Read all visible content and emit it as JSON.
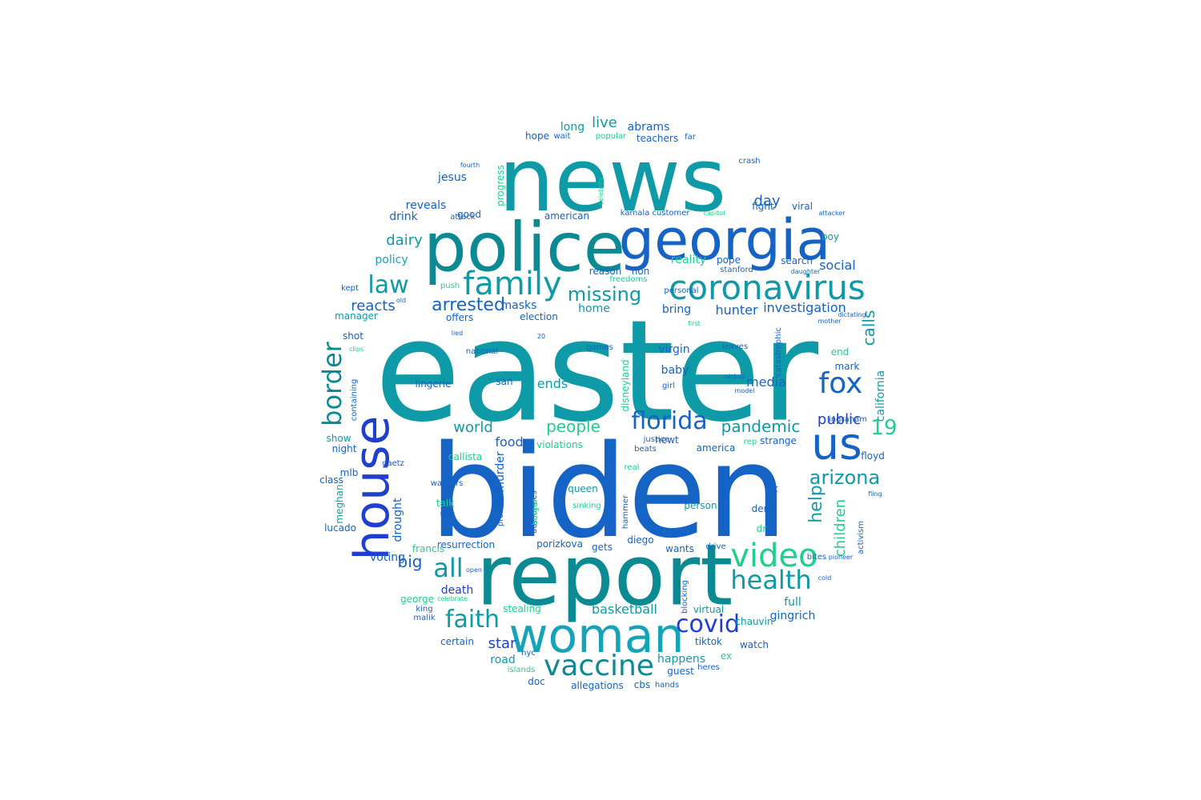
{
  "palette": {
    "teal": "#0e9aa7",
    "teal_dark": "#0b8a93",
    "blue": "#1563c4",
    "blue_dark": "#1f3fcf",
    "cyan": "#14a3b8",
    "green": "#1fcf8f",
    "green_light": "#3fe0a0",
    "indigo": "#3b4fe0"
  },
  "words": [
    {
      "text": "easter",
      "color": "teal"
    },
    {
      "text": "biden",
      "color": "blue"
    },
    {
      "text": "news",
      "color": "teal"
    },
    {
      "text": "report",
      "color": "teal_dark"
    },
    {
      "text": "police",
      "color": "teal_dark"
    },
    {
      "text": "georgia",
      "color": "blue"
    },
    {
      "text": "woman",
      "color": "cyan"
    },
    {
      "text": "house",
      "color": "blue_dark"
    },
    {
      "text": "us",
      "color": "blue"
    },
    {
      "text": "coronavirus",
      "color": "teal"
    },
    {
      "text": "family",
      "color": "teal"
    },
    {
      "text": "video",
      "color": "green"
    },
    {
      "text": "vaccine",
      "color": "teal_dark"
    },
    {
      "text": "health",
      "color": "teal"
    },
    {
      "text": "florida",
      "color": "blue"
    },
    {
      "text": "fox",
      "color": "blue"
    },
    {
      "text": "covid",
      "color": "blue_dark"
    },
    {
      "text": "law",
      "color": "teal"
    },
    {
      "text": "faith",
      "color": "teal"
    },
    {
      "text": "all",
      "color": "teal"
    },
    {
      "text": "border",
      "color": "teal_dark"
    },
    {
      "text": "19",
      "color": "green"
    },
    {
      "text": "missing",
      "color": "teal"
    },
    {
      "text": "arrested",
      "color": "blue"
    },
    {
      "text": "arizona",
      "color": "teal"
    },
    {
      "text": "help",
      "color": "teal"
    },
    {
      "text": "calls",
      "color": "teal"
    },
    {
      "text": "pandemic",
      "color": "teal"
    },
    {
      "text": "people",
      "color": "green"
    },
    {
      "text": "big",
      "color": "blue"
    },
    {
      "text": "children",
      "color": "green"
    },
    {
      "text": "dairy",
      "color": "teal"
    },
    {
      "text": "reacts",
      "color": "blue"
    },
    {
      "text": "public",
      "color": "blue_dark"
    },
    {
      "text": "star",
      "color": "blue_dark"
    },
    {
      "text": "world",
      "color": "teal"
    },
    {
      "text": "day",
      "color": "blue"
    },
    {
      "text": "live",
      "color": "teal"
    },
    {
      "text": "ends",
      "color": "teal"
    },
    {
      "text": "media",
      "color": "blue"
    },
    {
      "text": "hunter",
      "color": "blue"
    },
    {
      "text": "investigation",
      "color": "blue"
    },
    {
      "text": "masks",
      "color": "blue"
    },
    {
      "text": "basketball",
      "color": "teal"
    },
    {
      "text": "social",
      "color": "blue"
    },
    {
      "text": "drought",
      "color": "blue"
    },
    {
      "text": "food",
      "color": "blue"
    },
    {
      "text": "voting",
      "color": "blue"
    },
    {
      "text": "baby",
      "color": "blue"
    },
    {
      "text": "reality",
      "color": "green"
    },
    {
      "text": "california",
      "color": "teal"
    },
    {
      "text": "jesus",
      "color": "blue"
    },
    {
      "text": "reveals",
      "color": "blue"
    },
    {
      "text": "drink",
      "color": "blue"
    },
    {
      "text": "policy",
      "color": "cyan"
    },
    {
      "text": "long",
      "color": "teal"
    },
    {
      "text": "abrams",
      "color": "blue"
    },
    {
      "text": "death",
      "color": "blue_dark"
    },
    {
      "text": "happens",
      "color": "teal"
    },
    {
      "text": "full",
      "color": "teal"
    },
    {
      "text": "murder",
      "color": "blue"
    },
    {
      "text": "gingrich",
      "color": "blue"
    },
    {
      "text": "home",
      "color": "teal"
    },
    {
      "text": "bring",
      "color": "blue"
    },
    {
      "text": "virgin",
      "color": "blue"
    },
    {
      "text": "election",
      "color": "blue"
    },
    {
      "text": "show",
      "color": "teal"
    },
    {
      "text": "night",
      "color": "blue"
    },
    {
      "text": "road",
      "color": "teal"
    },
    {
      "text": "lingerie",
      "color": "blue"
    },
    {
      "text": "pope",
      "color": "blue"
    },
    {
      "text": "queen",
      "color": "teal"
    },
    {
      "text": "talk",
      "color": "green"
    },
    {
      "text": "resurrection",
      "color": "blue"
    },
    {
      "text": "porizkova",
      "color": "blue"
    },
    {
      "text": "francis",
      "color": "green"
    },
    {
      "text": "chauvin",
      "color": "teal"
    },
    {
      "text": "tiktok",
      "color": "blue"
    },
    {
      "text": "guest",
      "color": "blue"
    },
    {
      "text": "doc",
      "color": "blue"
    },
    {
      "text": "allegations",
      "color": "blue"
    },
    {
      "text": "stealing",
      "color": "green"
    },
    {
      "text": "george",
      "color": "green"
    },
    {
      "text": "virtual",
      "color": "teal"
    },
    {
      "text": "person",
      "color": "teal"
    },
    {
      "text": "america",
      "color": "blue"
    },
    {
      "text": "strange",
      "color": "blue"
    },
    {
      "text": "newt",
      "color": "blue"
    },
    {
      "text": "callista",
      "color": "green"
    },
    {
      "text": "violations",
      "color": "green"
    },
    {
      "text": "shot",
      "color": "blue"
    },
    {
      "text": "manager",
      "color": "teal"
    },
    {
      "text": "offers",
      "color": "blue"
    },
    {
      "text": "good",
      "color": "blue"
    },
    {
      "text": "american",
      "color": "blue"
    },
    {
      "text": "progress",
      "color": "green"
    },
    {
      "text": "fight",
      "color": "blue"
    },
    {
      "text": "viral",
      "color": "blue"
    },
    {
      "text": "boy",
      "color": "teal"
    },
    {
      "text": "search",
      "color": "blue"
    },
    {
      "text": "non",
      "color": "blue"
    },
    {
      "text": "reason",
      "color": "blue"
    },
    {
      "text": "hope",
      "color": "blue"
    },
    {
      "text": "teachers",
      "color": "blue"
    },
    {
      "text": "class",
      "color": "blue"
    },
    {
      "text": "meghan",
      "color": "teal"
    },
    {
      "text": "mlb",
      "color": "blue"
    },
    {
      "text": "lucado",
      "color": "blue"
    },
    {
      "text": "containing",
      "color": "blue"
    },
    {
      "text": "disneyland",
      "color": "green"
    },
    {
      "text": "san",
      "color": "blue"
    },
    {
      "text": "activism",
      "color": "blue"
    },
    {
      "text": "floyd",
      "color": "blue"
    },
    {
      "text": "mark",
      "color": "blue"
    },
    {
      "text": "end",
      "color": "green"
    },
    {
      "text": "let",
      "color": "blue"
    },
    {
      "text": "dem",
      "color": "blue"
    },
    {
      "text": "dr",
      "color": "green"
    },
    {
      "text": "wants",
      "color": "blue"
    },
    {
      "text": "gets",
      "color": "blue"
    },
    {
      "text": "diego",
      "color": "blue"
    },
    {
      "text": "certain",
      "color": "blue"
    },
    {
      "text": "watch",
      "color": "blue"
    },
    {
      "text": "ex",
      "color": "green"
    },
    {
      "text": "cbs",
      "color": "blue"
    },
    {
      "text": "matt",
      "color": "blue"
    },
    {
      "text": "blocking",
      "color": "blue"
    },
    {
      "text": "ingraham",
      "color": "blue"
    },
    {
      "text": "national",
      "color": "blue"
    },
    {
      "text": "kamala",
      "color": "blue"
    },
    {
      "text": "customer",
      "color": "blue"
    },
    {
      "text": "stanford",
      "color": "blue"
    },
    {
      "text": "kept",
      "color": "blue"
    },
    {
      "text": "push",
      "color": "green"
    },
    {
      "text": "crash",
      "color": "blue"
    },
    {
      "text": "leaves",
      "color": "blue"
    },
    {
      "text": "attack",
      "color": "blue"
    },
    {
      "text": "girl",
      "color": "blue"
    },
    {
      "text": "games",
      "color": "blue"
    },
    {
      "text": "nyc",
      "color": "blue"
    },
    {
      "text": "islands",
      "color": "green"
    },
    {
      "text": "promise",
      "color": "blue"
    },
    {
      "text": "authorities",
      "color": "blue"
    },
    {
      "text": "hammer",
      "color": "blue"
    },
    {
      "text": "sinking",
      "color": "green"
    },
    {
      "text": "beats",
      "color": "blue"
    },
    {
      "text": "justice",
      "color": "blue"
    },
    {
      "text": "warriors",
      "color": "blue"
    },
    {
      "text": "gaetz",
      "color": "blue"
    },
    {
      "text": "rep",
      "color": "green"
    },
    {
      "text": "drive",
      "color": "blue"
    },
    {
      "text": "bites",
      "color": "blue"
    },
    {
      "text": "hands",
      "color": "blue"
    },
    {
      "text": "heres",
      "color": "blue"
    },
    {
      "text": "king",
      "color": "blue"
    },
    {
      "text": "malik",
      "color": "blue"
    },
    {
      "text": "burger",
      "color": "green"
    },
    {
      "text": "nah",
      "color": "blue"
    },
    {
      "text": "popular",
      "color": "green"
    },
    {
      "text": "wait",
      "color": "blue"
    },
    {
      "text": "far",
      "color": "blue"
    },
    {
      "text": "personal",
      "color": "blue"
    },
    {
      "text": "freedoms",
      "color": "green"
    },
    {
      "text": "catastrophic",
      "color": "blue"
    },
    {
      "text": "real",
      "color": "green"
    },
    {
      "text": "open",
      "color": "blue"
    },
    {
      "text": "20",
      "color": "blue"
    },
    {
      "text": "clips",
      "color": "green"
    },
    {
      "text": "first",
      "color": "green"
    },
    {
      "text": "mother",
      "color": "blue"
    },
    {
      "text": "dictating",
      "color": "blue"
    },
    {
      "text": "daughter",
      "color": "blue"
    },
    {
      "text": "celebrate",
      "color": "green"
    },
    {
      "text": "fourth",
      "color": "blue"
    },
    {
      "text": "old",
      "color": "blue"
    },
    {
      "text": "cold",
      "color": "blue"
    },
    {
      "text": "pioneer",
      "color": "blue"
    },
    {
      "text": "capitol",
      "color": "green"
    },
    {
      "text": "attacker",
      "color": "blue"
    },
    {
      "text": "nickup",
      "color": "blue"
    },
    {
      "text": "model",
      "color": "blue"
    },
    {
      "text": "fling",
      "color": "blue"
    },
    {
      "text": "celebrity",
      "color": "green"
    },
    {
      "text": "lied",
      "color": "blue"
    }
  ]
}
